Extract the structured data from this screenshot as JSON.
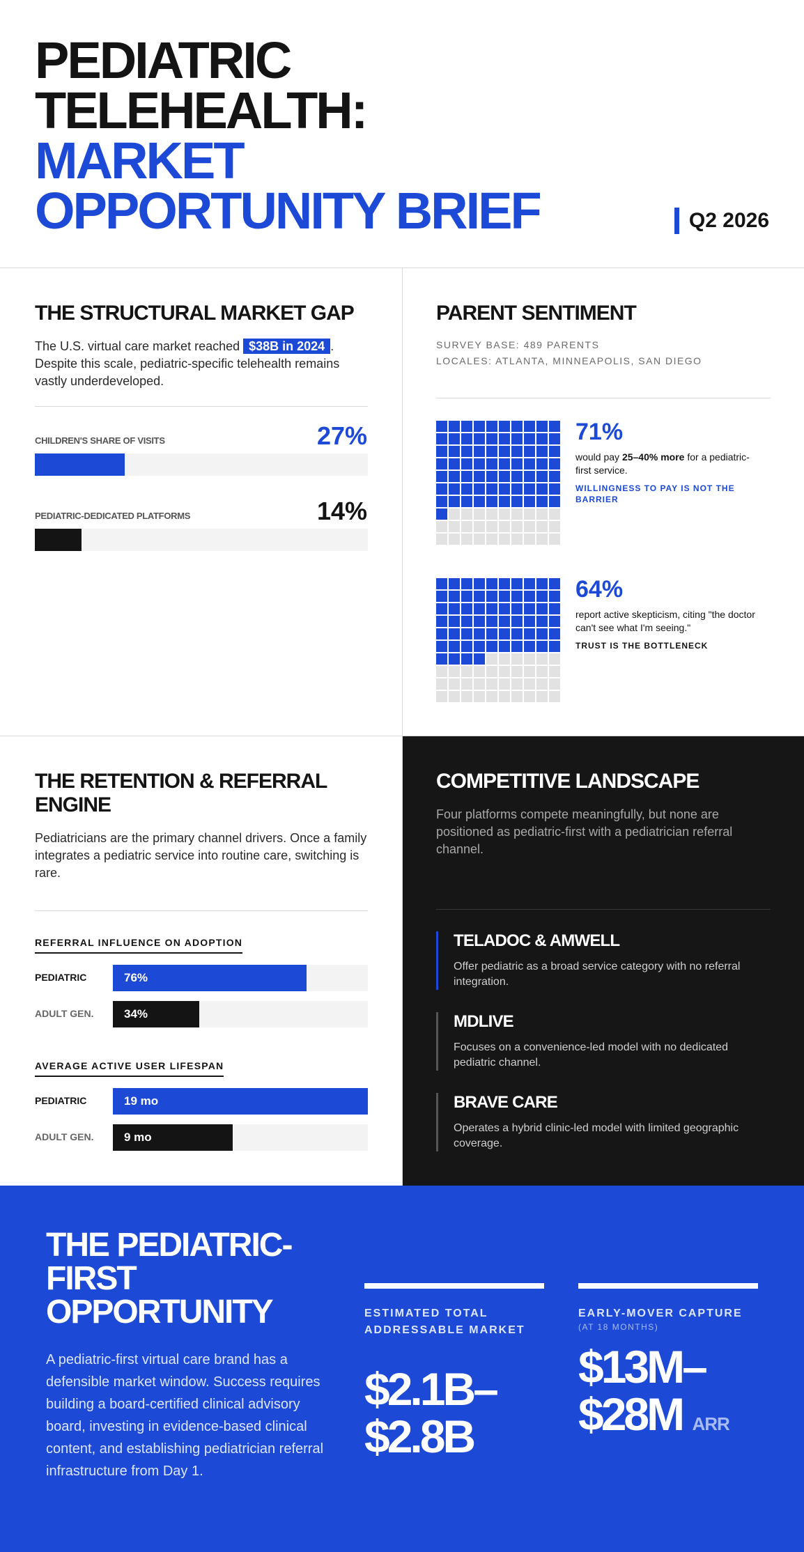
{
  "header": {
    "title_line1": "PEDIATRIC",
    "title_line2": "TELEHEALTH:",
    "title_line3": "MARKET",
    "title_line4": "OPPORTUNITY BRIEF",
    "quarter": "Q2 2026"
  },
  "market_gap": {
    "title": "THE STRUCTURAL MARKET GAP",
    "body_pre": "The U.S. virtual care market reached ",
    "highlight": "$38B in 2024",
    "body_post": ". Despite this scale, pediatric-specific telehealth remains vastly underdeveloped.",
    "metrics": [
      {
        "label": "CHILDREN'S SHARE OF VISITS",
        "value_text": "27%",
        "value": 27,
        "color": "#1c4ad6"
      },
      {
        "label": "PEDIATRIC-DEDICATED PLATFORMS",
        "value_text": "14%",
        "value": 14,
        "color": "#141414"
      }
    ]
  },
  "sentiment": {
    "title": "PARENT SENTIMENT",
    "survey_base": "SURVEY BASE: 489 PARENTS",
    "locales": "LOCALES: ATLANTA, MINNEAPOLIS, SAN DIEGO",
    "stats": [
      {
        "value": 71,
        "value_text": "71%",
        "text_pre": "would pay ",
        "text_bold": "25–40% more",
        "text_post": " for a pediatric-first service.",
        "note": "WILLINGNESS TO PAY IS NOT THE BARRIER",
        "note_color": "#1c4ad6"
      },
      {
        "value": 64,
        "value_text": "64%",
        "text_pre": "report active skepticism, citing \"the doctor can't see what I'm seeing.\"",
        "text_bold": "",
        "text_post": "",
        "note": "TRUST IS THE BOTTLENECK",
        "note_color": "#141414"
      }
    ]
  },
  "retention": {
    "title_line1": "THE RETENTION & REFERRAL",
    "title_line2": "ENGINE",
    "body": "Pediatricians are the primary channel drivers. Once a family integrates a pediatric service into routine care, switching is rare.",
    "charts": [
      {
        "heading": "REFERRAL INFLUENCE ON ADOPTION",
        "rows": [
          {
            "label": "PEDIATRIC",
            "value_text": "76%",
            "value": 0.76,
            "color": "#1c4ad6"
          },
          {
            "label": "ADULT GEN.",
            "value_text": "34%",
            "value": 0.34,
            "color": "#141414"
          }
        ]
      },
      {
        "heading": "AVERAGE ACTIVE USER LIFESPAN",
        "rows": [
          {
            "label": "PEDIATRIC",
            "value_text": "19 mo",
            "value": 1.0,
            "color": "#1c4ad6"
          },
          {
            "label": "ADULT GEN.",
            "value_text": "9 mo",
            "value": 0.47,
            "color": "#141414"
          }
        ]
      }
    ]
  },
  "competitive": {
    "title": "COMPETITIVE LANDSCAPE",
    "body": "Four platforms compete meaningfully, but none are positioned as pediatric-first with a pediatrician referral channel.",
    "competitors": [
      {
        "name": "TELADOC & AMWELL",
        "desc": "Offer pediatric as a broad service category with no referral integration."
      },
      {
        "name": "MDLIVE",
        "desc": "Focuses on a convenience-led model with no dedicated pediatric channel."
      },
      {
        "name": "BRAVE CARE",
        "desc": "Operates a hybrid clinic-led model with limited geographic coverage."
      }
    ]
  },
  "opportunity": {
    "title": "THE PEDIATRIC-FIRST OPPORTUNITY",
    "body": "A pediatric-first virtual care brand has a defensible market window. Success requires building a board-certified clinical advisory board, investing in evidence-based clinical content, and establishing pediatrician referral infrastructure from Day 1.",
    "tam": {
      "label": "ESTIMATED TOTAL ADDRESSABLE MARKET",
      "value_line1": "$2.1B–",
      "value_line2": "$2.8B"
    },
    "capture": {
      "label": "EARLY-MOVER CAPTURE",
      "sublabel": "(AT 18 MONTHS)",
      "value_line1": "$13M–",
      "value_line2": "$28M",
      "unit": "ARR"
    }
  }
}
